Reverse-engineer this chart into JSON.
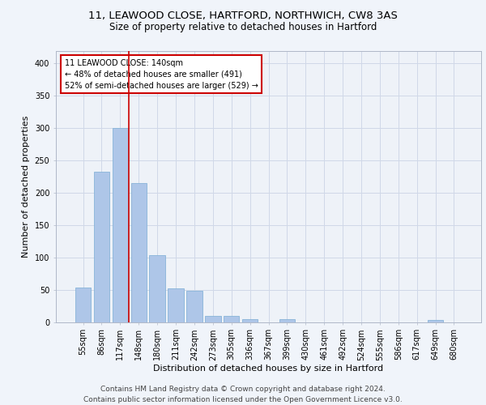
{
  "title_line1": "11, LEAWOOD CLOSE, HARTFORD, NORTHWICH, CW8 3AS",
  "title_line2": "Size of property relative to detached houses in Hartford",
  "xlabel": "Distribution of detached houses by size in Hartford",
  "ylabel": "Number of detached properties",
  "categories": [
    "55sqm",
    "86sqm",
    "117sqm",
    "148sqm",
    "180sqm",
    "211sqm",
    "242sqm",
    "273sqm",
    "305sqm",
    "336sqm",
    "367sqm",
    "399sqm",
    "430sqm",
    "461sqm",
    "492sqm",
    "524sqm",
    "555sqm",
    "586sqm",
    "617sqm",
    "649sqm",
    "680sqm"
  ],
  "values": [
    53,
    233,
    300,
    215,
    104,
    52,
    48,
    10,
    10,
    5,
    0,
    4,
    0,
    0,
    0,
    0,
    0,
    0,
    0,
    3,
    0
  ],
  "bar_color": "#aec6e8",
  "bar_edgecolor": "#7aadd4",
  "vline_color": "#cc0000",
  "annotation_text": "11 LEAWOOD CLOSE: 140sqm\n← 48% of detached houses are smaller (491)\n52% of semi-detached houses are larger (529) →",
  "annotation_box_color": "#ffffff",
  "annotation_box_edgecolor": "#cc0000",
  "ylim": [
    0,
    420
  ],
  "yticks": [
    0,
    50,
    100,
    150,
    200,
    250,
    300,
    350,
    400
  ],
  "grid_color": "#d0d8e8",
  "background_color": "#eef2f8",
  "fig_background_color": "#f0f4fa",
  "footer_text": "Contains HM Land Registry data © Crown copyright and database right 2024.\nContains public sector information licensed under the Open Government Licence v3.0.",
  "title_fontsize": 9.5,
  "subtitle_fontsize": 8.5,
  "axis_label_fontsize": 8,
  "tick_fontsize": 7,
  "annotation_fontsize": 7,
  "footer_fontsize": 6.5,
  "vline_x": 2.47
}
